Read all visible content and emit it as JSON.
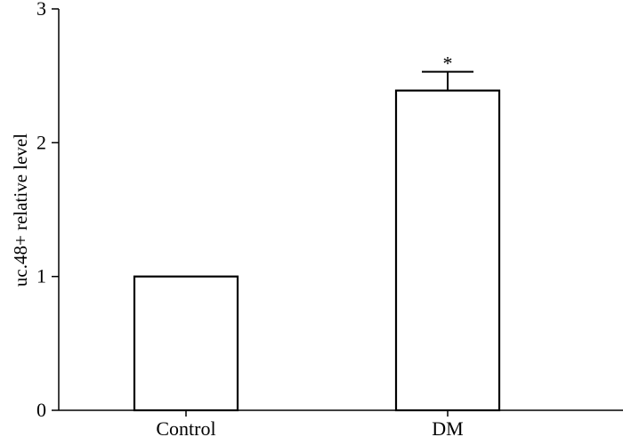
{
  "chart_data": {
    "type": "bar",
    "categories": [
      "Control",
      "DM"
    ],
    "values": [
      1.0,
      2.39
    ],
    "error_plus": [
      0,
      0.14
    ],
    "annotations": [
      "",
      "*"
    ],
    "ylabel": "uc.48+ relative level",
    "xlabel": "",
    "ylim": [
      0,
      3
    ],
    "yticks": [
      "0",
      "1",
      "2",
      "3"
    ],
    "grid": false,
    "legend": "none"
  }
}
